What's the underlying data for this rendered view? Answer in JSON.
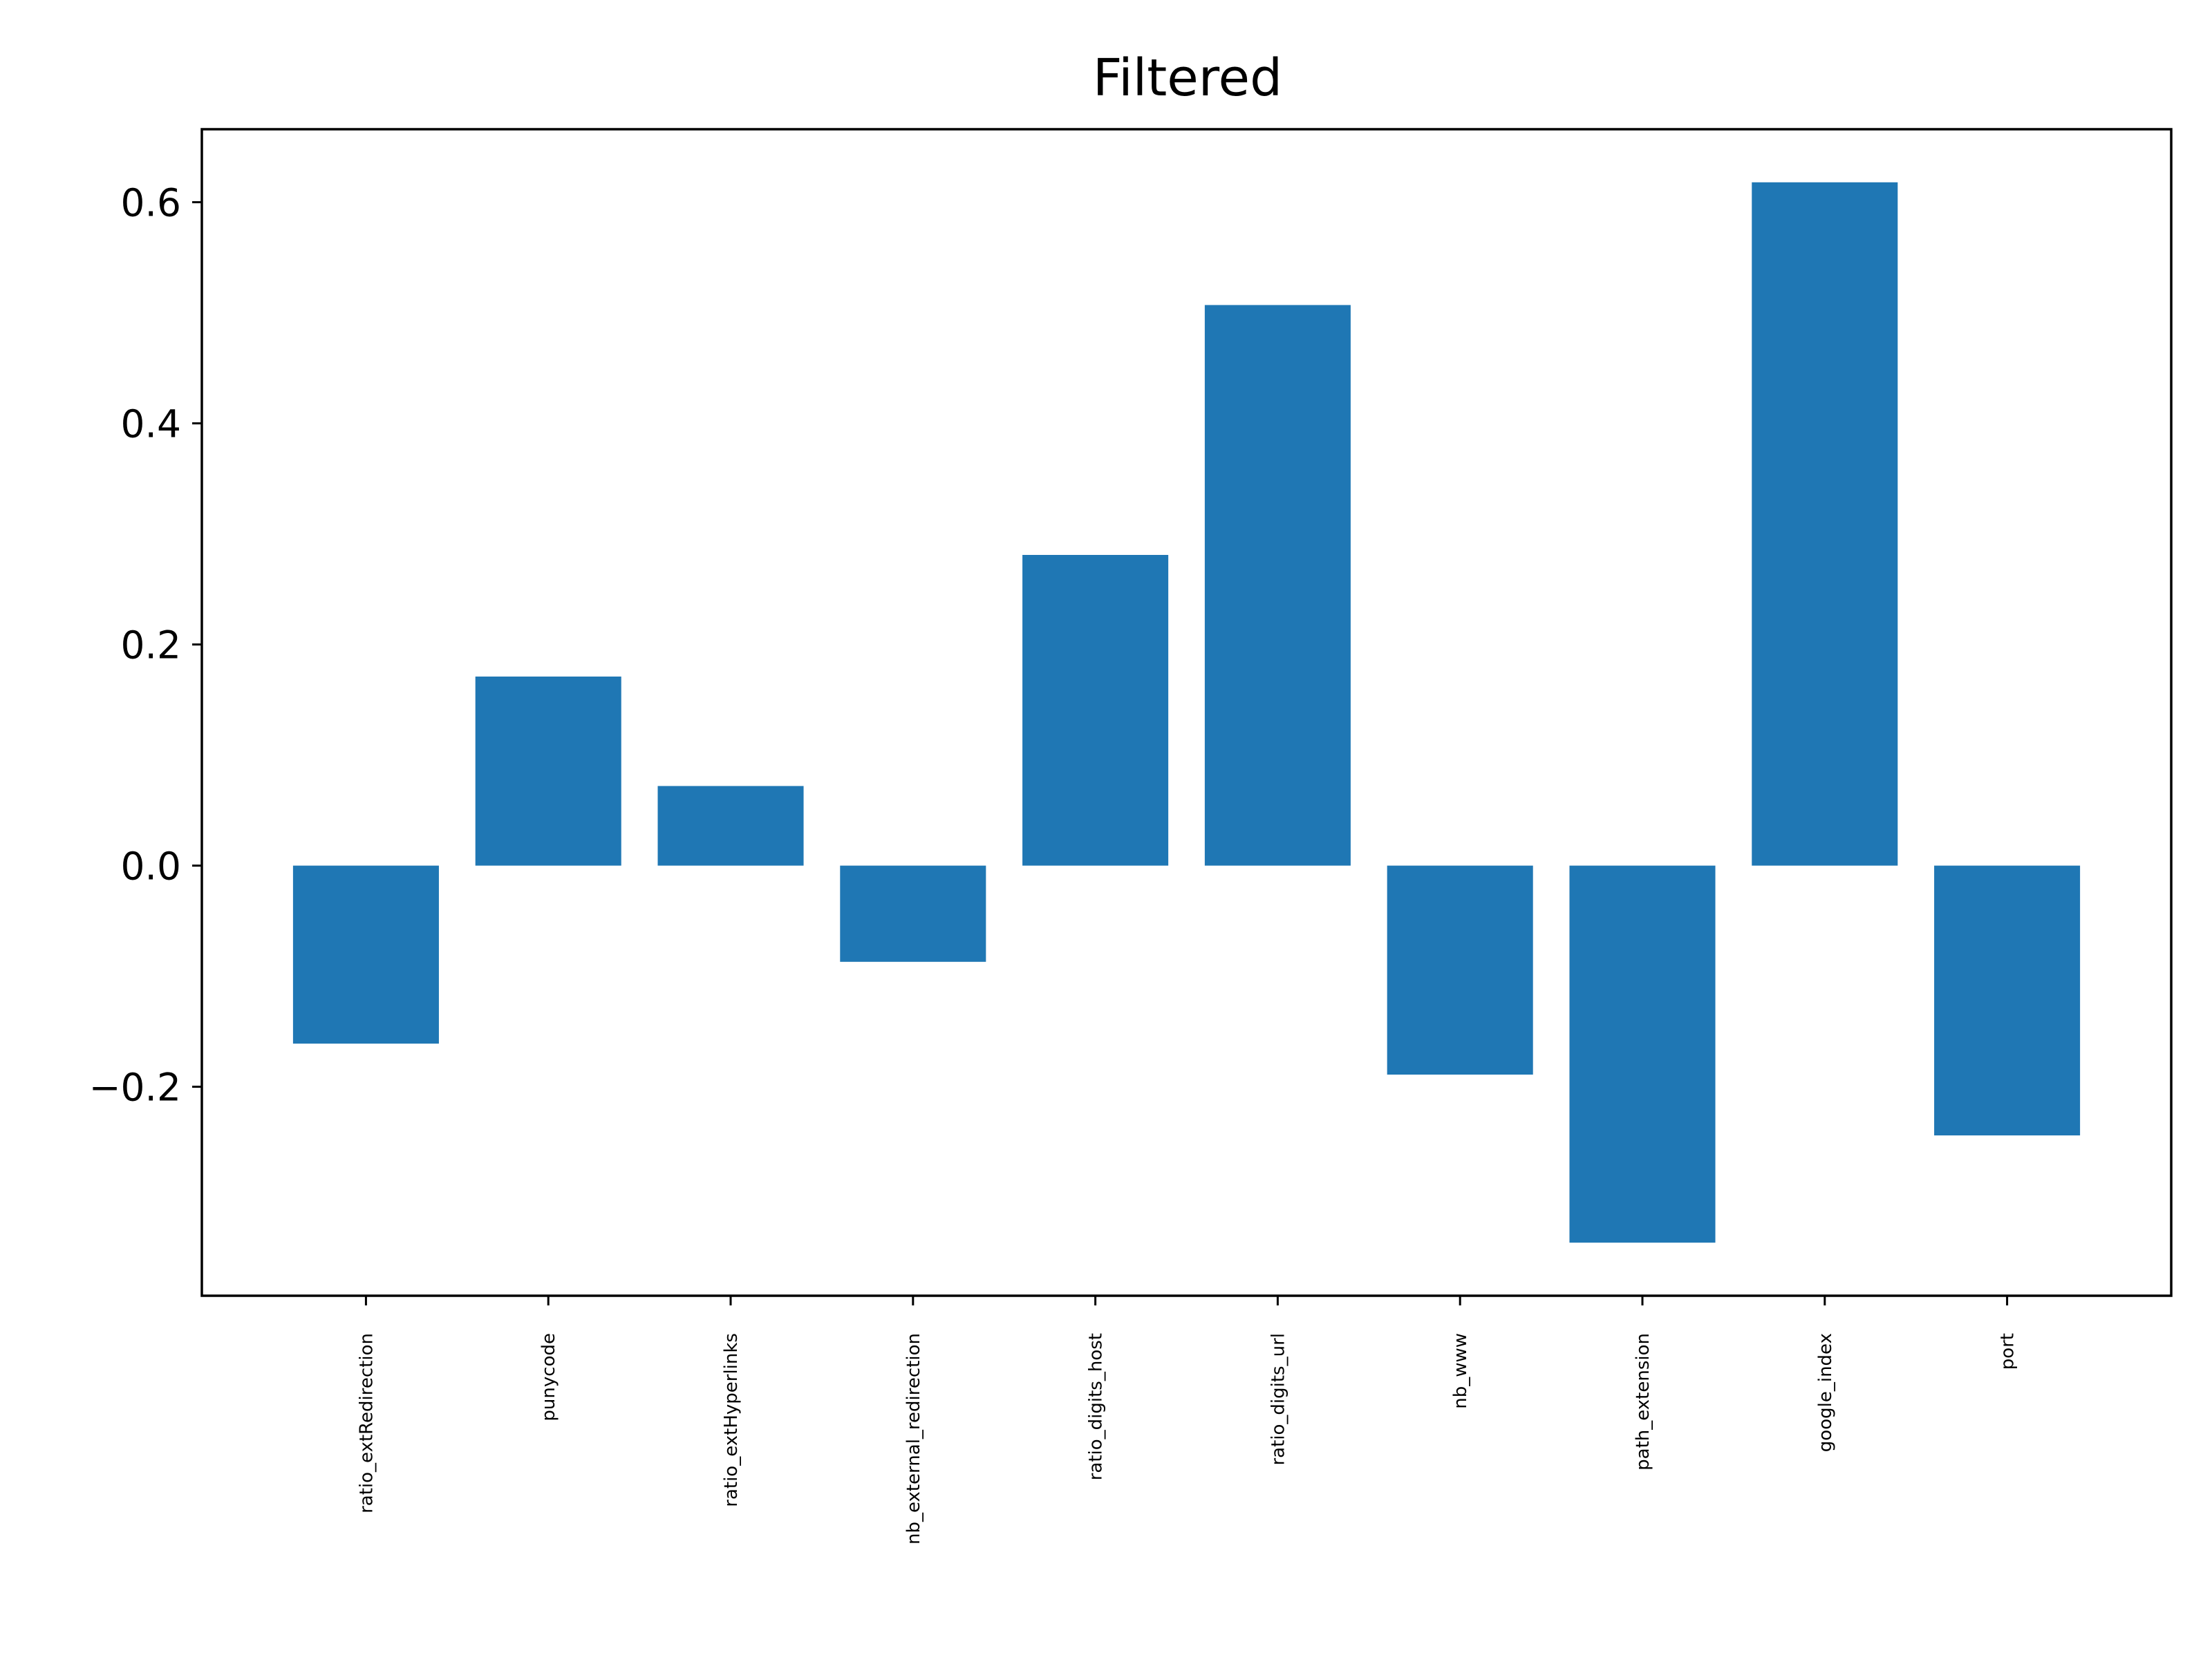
{
  "chart_data": {
    "type": "bar",
    "title": "Filtered",
    "xlabel": "",
    "ylabel": "",
    "categories": [
      "ratio_extRedirection",
      "punycode",
      "ratio_extHyperlinks",
      "nb_external_redirection",
      "ratio_digits_host",
      "ratio_digits_url",
      "nb_www",
      "path_extension",
      "google_index",
      "port"
    ],
    "values": [
      -0.161,
      0.171,
      0.072,
      -0.087,
      0.281,
      0.507,
      -0.189,
      -0.341,
      0.618,
      -0.244
    ],
    "ylim": [
      -0.389,
      0.666
    ],
    "yticks": [
      -0.2,
      0.0,
      0.2,
      0.4,
      0.6
    ],
    "ytick_labels": [
      "−0.2",
      "0.0",
      "0.2",
      "0.4",
      "0.6"
    ],
    "grid": false,
    "legend": "none",
    "bar_color": "#1f77b4"
  }
}
